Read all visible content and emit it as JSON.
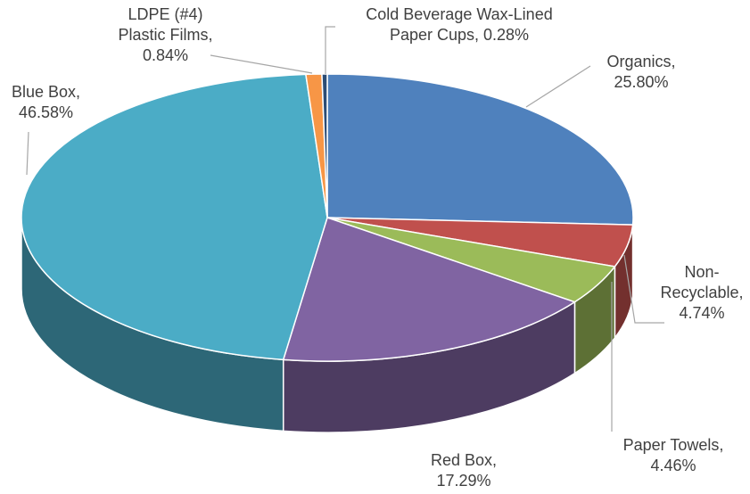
{
  "chart_data": {
    "type": "pie",
    "categories": [
      "Organics,",
      "Non-Recyclable,",
      "Paper Towels,",
      "Red Box,",
      "Blue Box,",
      "LDPE (#4) Plastic Films,",
      "Cold Beverage Wax-Lined Paper Cups,"
    ],
    "values": [
      25.8,
      4.74,
      4.46,
      17.29,
      46.58,
      0.84,
      0.28
    ],
    "value_labels": [
      "25.80%",
      "4.74%",
      "4.46%",
      "17.29%",
      "46.58%",
      "0.84%",
      "0.28%"
    ],
    "colors": [
      "#4f81bd",
      "#c0504d",
      "#9bbb59",
      "#8064a2",
      "#4bacc6",
      "#f79646",
      "#2c4d75"
    ]
  }
}
